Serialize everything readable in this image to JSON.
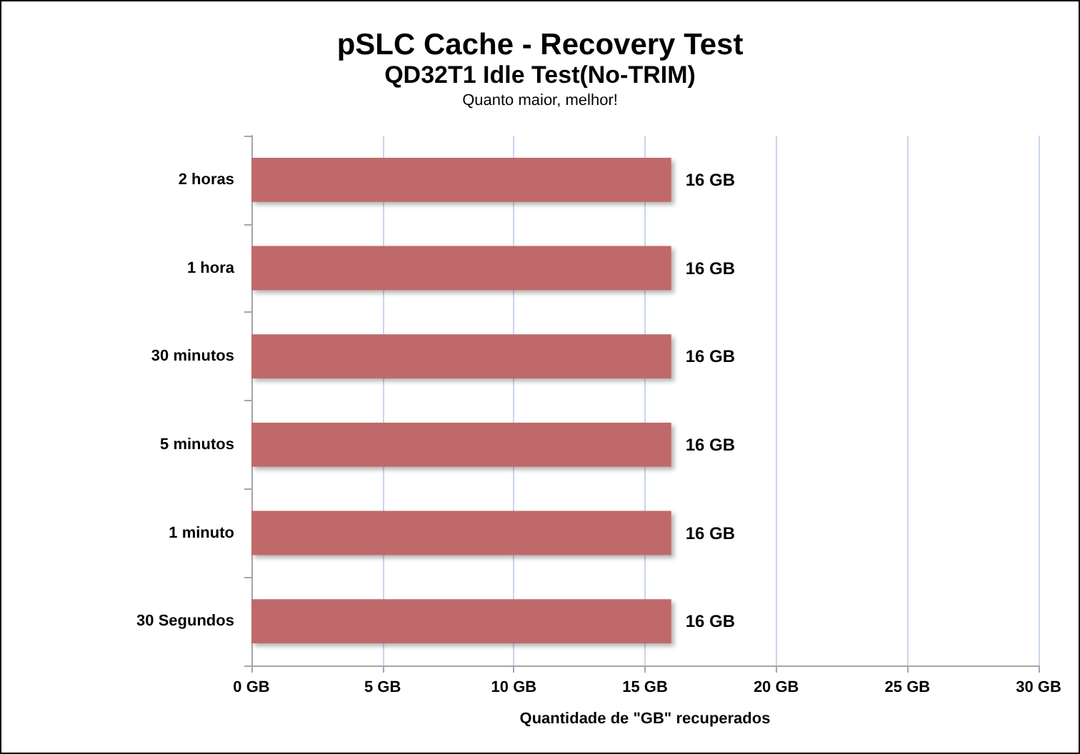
{
  "chart_data": {
    "type": "bar",
    "orientation": "horizontal",
    "title": "pSLC Cache - Recovery Test",
    "subtitle": "QD32T1 Idle Test(No-TRIM)",
    "annotations": [
      "Quanto maior, melhor!"
    ],
    "xlabel": "Quantidade de \"GB\" recuperados",
    "categories": [
      "2 horas",
      "1 hora",
      "30 minutos",
      "5 minutos",
      "1 minuto",
      "30 Segundos"
    ],
    "values": [
      16,
      16,
      16,
      16,
      16,
      16
    ],
    "value_labels": [
      "16 GB",
      "16 GB",
      "16 GB",
      "16 GB",
      "16 GB",
      "16 GB"
    ],
    "color": "#c0696a",
    "xlim": [
      0,
      30
    ],
    "xticks": [
      {
        "value": 0,
        "label": "0 GB"
      },
      {
        "value": 5,
        "label": "5 GB"
      },
      {
        "value": 10,
        "label": "10 GB"
      },
      {
        "value": 15,
        "label": "15 GB"
      },
      {
        "value": 20,
        "label": "20 GB"
      },
      {
        "value": 25,
        "label": "25 GB"
      },
      {
        "value": 30,
        "label": "30 GB"
      }
    ],
    "grid": "x"
  }
}
